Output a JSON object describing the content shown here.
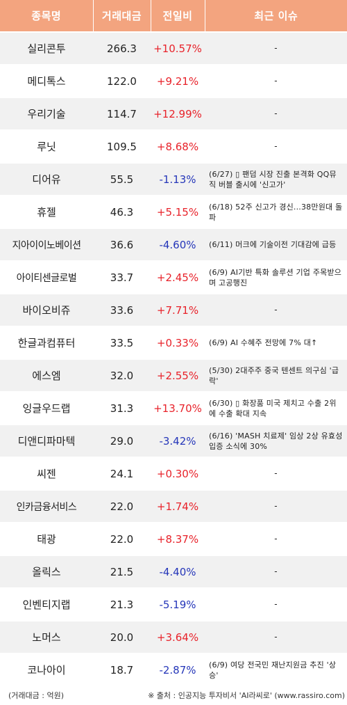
{
  "header": {
    "name": "종목명",
    "volume": "거래대금",
    "change": "전일비",
    "issue": "최근 이슈"
  },
  "rows": [
    {
      "name": "실리콘투",
      "volume": "266.3",
      "change": "+10.57%",
      "dir": "up",
      "issue": "-"
    },
    {
      "name": "메디톡스",
      "volume": "122.0",
      "change": "+9.21%",
      "dir": "up",
      "issue": "-"
    },
    {
      "name": "우리기술",
      "volume": "114.7",
      "change": "+12.99%",
      "dir": "up",
      "issue": "-"
    },
    {
      "name": "루닛",
      "volume": "109.5",
      "change": "+8.68%",
      "dir": "up",
      "issue": "-"
    },
    {
      "name": "디어유",
      "volume": "55.5",
      "change": "-1.13%",
      "dir": "down",
      "issue": "(6/27) ▯ 팬덤 시장 진출 본격화 QQ뮤직 버블 출시에 '신고가'"
    },
    {
      "name": "휴젤",
      "volume": "46.3",
      "change": "+5.15%",
      "dir": "up",
      "issue": "(6/18) 52주 신고가 경신...38만원대 돌파"
    },
    {
      "name": "지아이이노베이션",
      "volume": "36.6",
      "change": "-4.60%",
      "dir": "down",
      "issue": "(6/11) 머크에 기술이전 기대감에 급등"
    },
    {
      "name": "아이티센글로벌",
      "volume": "33.7",
      "change": "+2.45%",
      "dir": "up",
      "issue": "(6/9) AI기반 특화 솔루션 기업 주목받으며 고공행진"
    },
    {
      "name": "바이오비쥬",
      "volume": "33.6",
      "change": "+7.71%",
      "dir": "up",
      "issue": "-"
    },
    {
      "name": "한글과컴퓨터",
      "volume": "33.5",
      "change": "+0.33%",
      "dir": "up",
      "issue": "(6/9) AI 수혜주 전망에 7% 대↑"
    },
    {
      "name": "에스엠",
      "volume": "32.0",
      "change": "+2.55%",
      "dir": "up",
      "issue": "(5/30) 2대주주 중국 텐센트 의구심 '급락'"
    },
    {
      "name": "잉글우드랩",
      "volume": "31.3",
      "change": "+13.70%",
      "dir": "up",
      "issue": "(6/30) ▯ 화장품 미국 제치고 수출 2위에 수출 확대 지속"
    },
    {
      "name": "디앤디파마텍",
      "volume": "29.0",
      "change": "-3.42%",
      "dir": "down",
      "issue": "(6/16) 'MASH 치료제' 임상 2상 유효성 입증 소식에 30%"
    },
    {
      "name": "씨젠",
      "volume": "24.1",
      "change": "+0.30%",
      "dir": "up",
      "issue": "-"
    },
    {
      "name": "인카금융서비스",
      "volume": "22.0",
      "change": "+1.74%",
      "dir": "up",
      "issue": "-"
    },
    {
      "name": "태광",
      "volume": "22.0",
      "change": "+8.37%",
      "dir": "up",
      "issue": "-"
    },
    {
      "name": "올릭스",
      "volume": "21.5",
      "change": "-4.40%",
      "dir": "down",
      "issue": "-"
    },
    {
      "name": "인벤티지랩",
      "volume": "21.3",
      "change": "-5.19%",
      "dir": "down",
      "issue": "-"
    },
    {
      "name": "노머스",
      "volume": "20.0",
      "change": "+3.64%",
      "dir": "up",
      "issue": "-"
    },
    {
      "name": "코나아이",
      "volume": "18.7",
      "change": "-2.87%",
      "dir": "down",
      "issue": "(6/9) 여당 전국민 재난지원금 추진 '상승'"
    }
  ],
  "footer": {
    "unit_note": "(거래대금 : 억원)",
    "source_note": "※ 출처 : 인공지능 투자비서 'AI라씨로' (www.rassiro.com)"
  },
  "colors": {
    "header_bg": "#f3a47f",
    "row_shade": "#f1f1f1",
    "up": "#e8222a",
    "down": "#2536b9"
  }
}
